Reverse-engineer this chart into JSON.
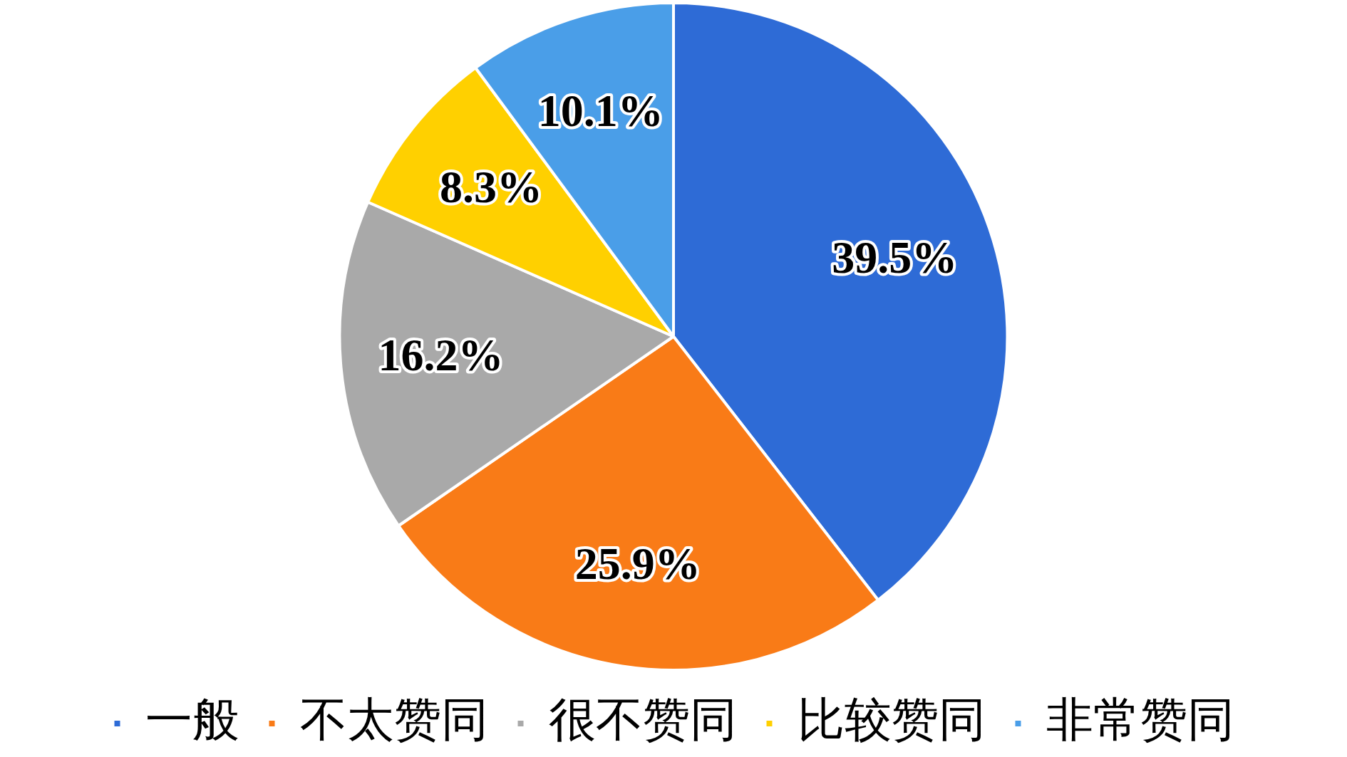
{
  "chart_data": {
    "type": "pie",
    "categories": [
      "一般",
      "不太赞同",
      "很不赞同",
      "比较赞同",
      "非常赞同"
    ],
    "values": [
      39.5,
      25.9,
      16.2,
      8.3,
      10.1
    ],
    "colors": [
      "#2e6bd6",
      "#f97b17",
      "#a9a9a9",
      "#ffd000",
      "#4a9ee8"
    ],
    "value_labels": [
      "39.5%",
      "25.9%",
      "16.2%",
      "8.3%",
      "10.1%"
    ],
    "legend": "bottom"
  }
}
